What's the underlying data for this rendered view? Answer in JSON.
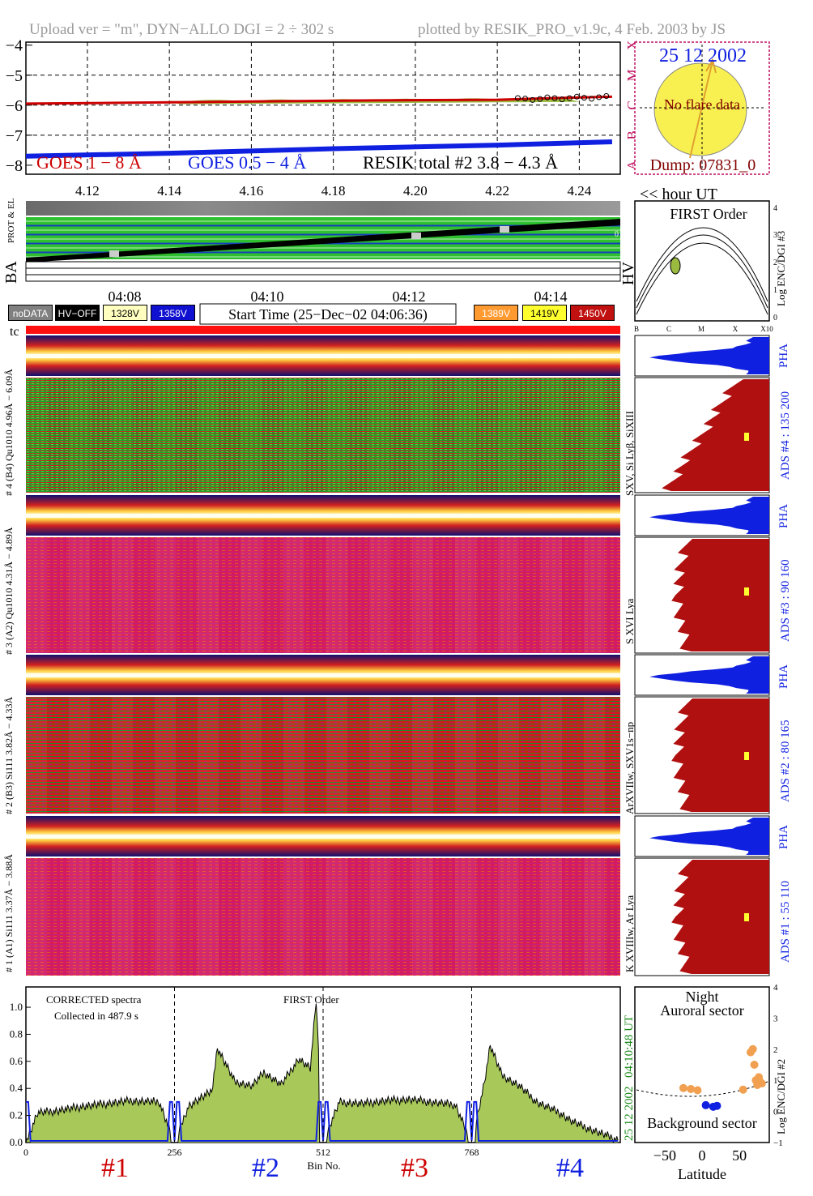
{
  "header": {
    "left": "Upload ver = \"m\", DYN−ALLO DGI =   2 ÷ 302 s",
    "right": "plotted by RESIK_PRO_v1.9c, 4 Feb. 2003 by JS"
  },
  "goes_panel": {
    "y_ticks": [
      "−4",
      "−5",
      "−6",
      "−7",
      "−8"
    ],
    "x_ticks": [
      "4.12",
      "4.14",
      "4.16",
      "4.18",
      "4.20",
      "4.22",
      "4.24"
    ],
    "x_unit_label": "<< hour UT",
    "flare_classes": [
      "X",
      "M",
      "C",
      "B",
      "A"
    ],
    "legend": {
      "goes_long": "GOES 1 − 8 Å",
      "goes_short": "GOES 0.5 − 4 Å",
      "resik": "RESIK total #2  3.8 − 4.3 Å"
    },
    "colors": {
      "goes_long": "#cc0000",
      "goes_short": "#1020e0",
      "resik": "#9aba40"
    },
    "series": [
      {
        "name": "GOES 1 − 8 Å",
        "x": [
          4.105,
          4.13,
          4.16,
          4.19,
          4.22,
          4.235,
          4.248
        ],
        "y": [
          -5.95,
          -5.92,
          -5.88,
          -5.84,
          -5.82,
          -5.76,
          -5.72
        ]
      },
      {
        "name": "GOES 0.5 − 4 Å",
        "x": [
          4.105,
          4.14,
          4.18,
          4.22,
          4.248
        ],
        "y": [
          -7.7,
          -7.6,
          -7.45,
          -7.33,
          -7.22
        ]
      }
    ]
  },
  "sun_panel": {
    "date": "25 12 2002",
    "message": "No flare data",
    "dump": "Dump: 07831_0"
  },
  "status_panel": {
    "side_label_1": "PROT  & EL",
    "side_label_2": "BA",
    "right_label": "HV"
  },
  "time_axis": {
    "ticks": [
      "04:08",
      "04:10",
      "04:12",
      "04:14"
    ],
    "start_time": "Start Time (25−Dec−02 04:06:36)",
    "tc_label": "tc"
  },
  "legend_buttons": [
    {
      "label": "noDATA",
      "bg": "#808080",
      "fg": "#ffffff"
    },
    {
      "label": "HV−OFF",
      "bg": "#000000",
      "fg": "#ffffff"
    },
    {
      "label": "1328V",
      "bg": "#ffffc0",
      "fg": "#000000"
    },
    {
      "label": "1358V",
      "bg": "#1010d0",
      "fg": "#ffffff"
    },
    {
      "label": "1389V",
      "bg": "#ff9a30",
      "fg": "#ffffff"
    },
    {
      "label": "1419V",
      "bg": "#ffff30",
      "fg": "#000000"
    },
    {
      "label": "1450V",
      "bg": "#c01010",
      "fg": "#ffffff"
    }
  ],
  "first_order_panel": {
    "title": "FIRST Order",
    "ylabel": "Log ENC/DGI #3",
    "y_ticks": [
      "4",
      "3",
      "2",
      "1",
      "0"
    ],
    "x_ticks": [
      "B",
      "C",
      "M",
      "X",
      "X10"
    ]
  },
  "channels": [
    {
      "left_label": "# 4 (B4) Qu1010 4.96Å − 6.09Å",
      "line_label": "SXV, Si Lyβ, SiXIII",
      "ads": "ADS #4 :  135 200",
      "pha": "PHA"
    },
    {
      "left_label": "# 3 (A2) Qu1010  4.31Å − 4.89Å",
      "line_label": "S XVI Lya",
      "ads": "ADS #3 :  90 160",
      "pha": "PHA"
    },
    {
      "left_label": "# 2 (B3) Si111  3.82Å − 4.33Å",
      "line_label": "ArXVIIw, SXV1s−np",
      "ads": "ADS #2 :  80 165",
      "pha": "PHA"
    },
    {
      "left_label": "# 1 (A1) Si111  3.37Å − 3.88Å",
      "line_label": "K XVIIIw, Ar Lya",
      "ads": "ADS #1 :  55 110",
      "pha": "PHA"
    }
  ],
  "spectrum_panel": {
    "note1": "CORRECTED spectra",
    "note2": "Collected in   487.9 s",
    "note3": "FIRST Order",
    "xlabel": "Bin No.",
    "x_ticks": [
      "0",
      "256",
      "512",
      "768"
    ],
    "y_ticks": [
      "0.0",
      "0.2",
      "0.4",
      "0.6",
      "0.8",
      "1.0"
    ],
    "right_time": "04:10:48 UT",
    "right_date": "25 12 2002",
    "channel_labels": [
      {
        "text": "#1",
        "color": "#cc0000"
      },
      {
        "text": "#2",
        "color": "#1020e0"
      },
      {
        "text": "#3",
        "color": "#cc0000"
      },
      {
        "text": "#4",
        "color": "#1020e0"
      }
    ],
    "colors": {
      "fill": "#a8c85a",
      "line": "#000000",
      "background": "#1020e0"
    }
  },
  "chart_data": [
    {
      "type": "line",
      "title": "",
      "xlabel": "<< hour UT",
      "ylabel": "",
      "xlim": [
        4.105,
        4.25
      ],
      "ylim": [
        -8.3,
        -3.9
      ],
      "series": [
        {
          "name": "GOES 1 − 8 Å",
          "x": [
            4.105,
            4.13,
            4.16,
            4.19,
            4.22,
            4.235,
            4.248
          ],
          "y": [
            -5.95,
            -5.92,
            -5.88,
            -5.84,
            -5.82,
            -5.76,
            -5.72
          ]
        },
        {
          "name": "GOES 0.5 − 4 Å",
          "x": [
            4.105,
            4.14,
            4.18,
            4.22,
            4.248
          ],
          "y": [
            -7.7,
            -7.6,
            -7.45,
            -7.33,
            -7.22
          ]
        }
      ]
    },
    {
      "type": "area",
      "title": "",
      "xlabel": "Bin No.",
      "ylabel": "",
      "xlim": [
        0,
        1024
      ],
      "ylim": [
        0,
        1.15
      ],
      "x": [
        0,
        20,
        60,
        100,
        140,
        180,
        230,
        256,
        280,
        320,
        330,
        360,
        390,
        410,
        440,
        470,
        490,
        500,
        512,
        540,
        580,
        620,
        660,
        700,
        740,
        768,
        790,
        800,
        820,
        850,
        880,
        920,
        940,
        960,
        990,
        1020
      ],
      "series": [
        {
          "name": "",
          "y": [
            0.0,
            0.22,
            0.24,
            0.27,
            0.29,
            0.31,
            0.3,
            0.0,
            0.27,
            0.38,
            0.7,
            0.45,
            0.42,
            0.52,
            0.43,
            0.62,
            0.55,
            1.05,
            0.0,
            0.3,
            0.29,
            0.31,
            0.32,
            0.3,
            0.28,
            0.0,
            0.45,
            0.72,
            0.5,
            0.42,
            0.3,
            0.22,
            0.16,
            0.12,
            0.07,
            0.02
          ]
        }
      ]
    },
    {
      "type": "scatter",
      "title": "",
      "xlabel": "Latitude",
      "ylabel": "Log ENC/DGI #2",
      "xlim": [
        -90,
        90
      ],
      "ylim": [
        -1,
        4
      ],
      "x_ticks": [
        "−50",
        "0",
        "50"
      ],
      "y_ticks": [
        "4",
        "3",
        "2",
        "1",
        "0",
        "−1"
      ],
      "annotations": [
        "Night",
        "Auroral sector",
        "Background sector"
      ],
      "series": [
        {
          "name": "",
          "x": [
            -25,
            -15,
            -6,
            55,
            65,
            68,
            70,
            72,
            74,
            76,
            78,
            80
          ],
          "y": [
            0.75,
            0.72,
            0.68,
            0.7,
            1.9,
            2.0,
            1.5,
            1.0,
            0.85,
            1.1,
            0.95,
            0.9
          ]
        },
        {
          "name": "",
          "x": [
            5,
            15,
            20
          ],
          "y": [
            0.2,
            0.15,
            0.18
          ]
        }
      ]
    }
  ]
}
